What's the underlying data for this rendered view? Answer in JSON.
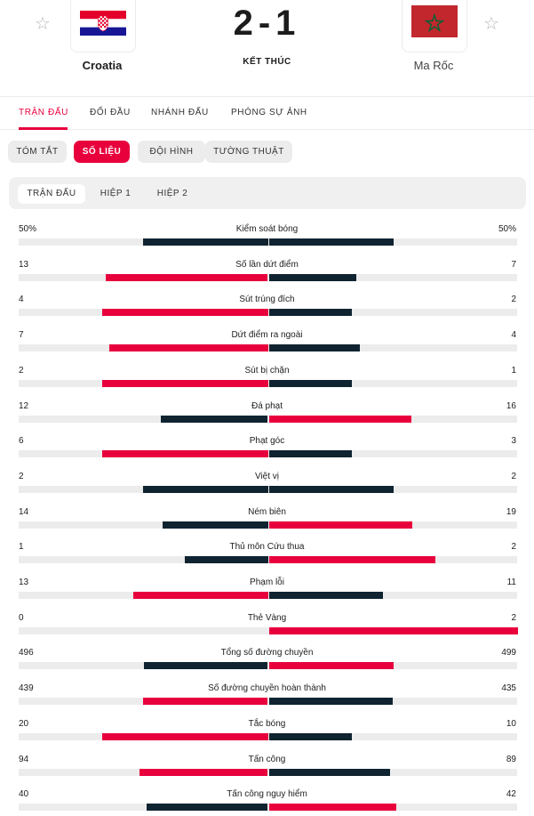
{
  "match": {
    "home": {
      "name": "Croatia"
    },
    "away": {
      "name": "Ma Rốc"
    },
    "score": "2-1",
    "status": "KẾT THÚC"
  },
  "tabs": [
    "TRẬN ĐẤU",
    "ĐỐI ĐẦU",
    "NHÁNH ĐẤU",
    "PHÓNG SỰ ẢNH"
  ],
  "subtabs": [
    "TÓM TẮT",
    "SỐ LIỆU",
    "ĐỘI HÌNH",
    "TƯỜNG THUẬT"
  ],
  "periods": [
    "TRẬN ĐẤU",
    "HIỆP 1",
    "HIỆP 2"
  ],
  "colors": {
    "accent": "#e8003d",
    "dark": "#0f2330",
    "track": "#ececec"
  },
  "stats": [
    {
      "label": "Kiểm soát bóng",
      "home": "50%",
      "away": "50%",
      "hv": 50,
      "av": 50
    },
    {
      "label": "Số lần dứt điểm",
      "home": "13",
      "away": "7",
      "hv": 13,
      "av": 7
    },
    {
      "label": "Sút trúng đích",
      "home": "4",
      "away": "2",
      "hv": 4,
      "av": 2
    },
    {
      "label": "Dứt điểm ra ngoài",
      "home": "7",
      "away": "4",
      "hv": 7,
      "av": 4
    },
    {
      "label": "Sút bị chặn",
      "home": "2",
      "away": "1",
      "hv": 2,
      "av": 1
    },
    {
      "label": "Đá phạt",
      "home": "12",
      "away": "16",
      "hv": 12,
      "av": 16
    },
    {
      "label": "Phạt góc",
      "home": "6",
      "away": "3",
      "hv": 6,
      "av": 3
    },
    {
      "label": "Việt vị",
      "home": "2",
      "away": "2",
      "hv": 2,
      "av": 2
    },
    {
      "label": "Ném biên",
      "home": "14",
      "away": "19",
      "hv": 14,
      "av": 19
    },
    {
      "label": "Thủ môn Cứu thua",
      "home": "1",
      "away": "2",
      "hv": 1,
      "av": 2
    },
    {
      "label": "Phạm lỗi",
      "home": "13",
      "away": "11",
      "hv": 13,
      "av": 11
    },
    {
      "label": "Thẻ Vàng",
      "home": "0",
      "away": "2",
      "hv": 0,
      "av": 2
    },
    {
      "label": "Tổng số đường chuyền",
      "home": "496",
      "away": "499",
      "hv": 496,
      "av": 499
    },
    {
      "label": "Số đường chuyền hoàn thành",
      "home": "439",
      "away": "435",
      "hv": 439,
      "av": 435
    },
    {
      "label": "Tắc bóng",
      "home": "20",
      "away": "10",
      "hv": 20,
      "av": 10
    },
    {
      "label": "Tấn công",
      "home": "94",
      "away": "89",
      "hv": 94,
      "av": 89
    },
    {
      "label": "Tấn công nguy hiểm",
      "home": "40",
      "away": "42",
      "hv": 40,
      "av": 42
    }
  ]
}
